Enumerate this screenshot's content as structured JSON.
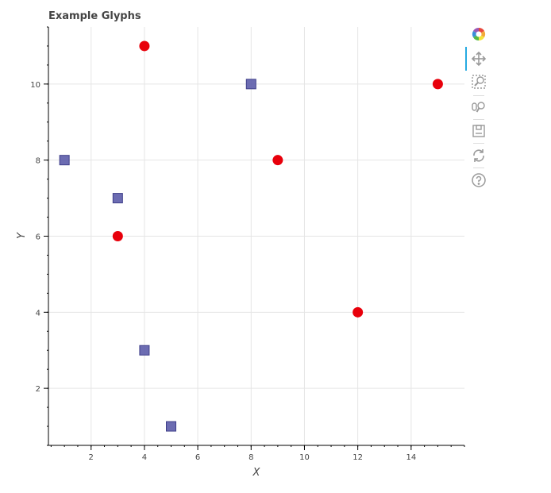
{
  "chart_data": {
    "type": "scatter",
    "title": "Example Glyphs",
    "xlabel": "X",
    "ylabel": "Y",
    "xlim": [
      0.4,
      16.0
    ],
    "ylim": [
      0.5,
      11.5
    ],
    "xticks": [
      2,
      4,
      6,
      8,
      10,
      12,
      14
    ],
    "yticks": [
      2,
      4,
      6,
      8,
      10
    ],
    "grid": true,
    "series": [
      {
        "marker": "square",
        "color": "#5c5caa",
        "x": [
          1,
          3,
          4,
          5,
          8
        ],
        "y": [
          8,
          7,
          3,
          1,
          10
        ]
      },
      {
        "marker": "circle",
        "color": "#e8000b",
        "x": [
          3,
          4,
          9,
          12,
          15
        ],
        "y": [
          6,
          11,
          8,
          4,
          10
        ]
      }
    ]
  },
  "toolbar": {
    "tools": [
      {
        "name": "logo-icon"
      },
      {
        "name": "pan-tool-icon",
        "active": true
      },
      {
        "name": "box-zoom-tool-icon"
      },
      {
        "name": "wheel-zoom-tool-icon"
      },
      {
        "name": "save-tool-icon"
      },
      {
        "name": "reset-tool-icon"
      },
      {
        "name": "help-tool-icon"
      }
    ]
  }
}
